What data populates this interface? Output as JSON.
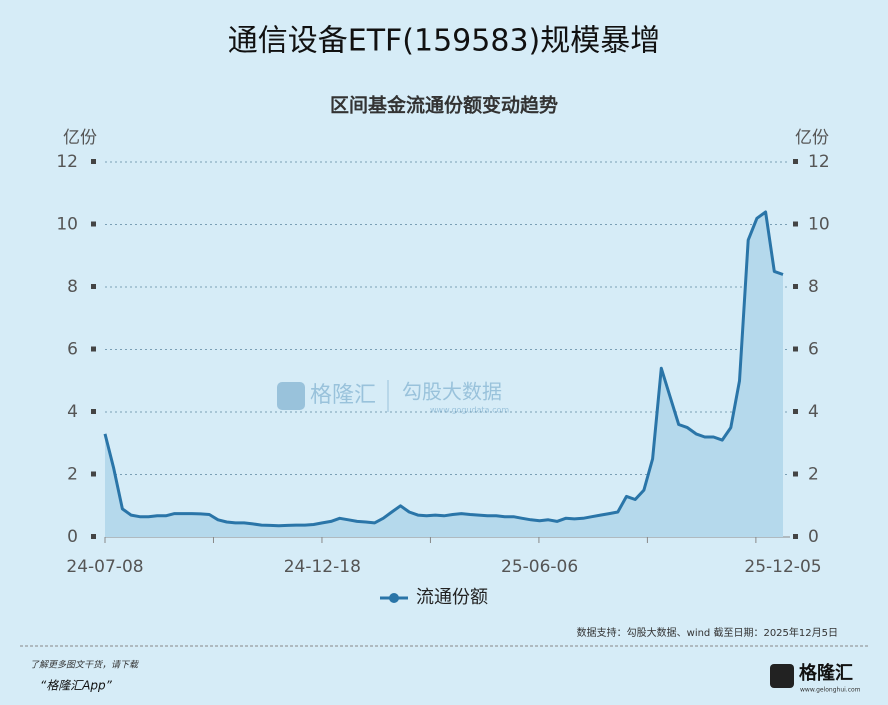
{
  "chart_data": {
    "type": "line",
    "title": "通信设备ETF(159583)规模暴增",
    "subtitle": "区间基金流通份额变动趋势",
    "y_unit": "亿份",
    "categories": [
      "24-07-08",
      null,
      null,
      null,
      null,
      null,
      null,
      null,
      null,
      null,
      null,
      null,
      null,
      null,
      null,
      null,
      null,
      null,
      null,
      null,
      null,
      null,
      null,
      null,
      null,
      "24-12-18",
      null,
      null,
      null,
      null,
      null,
      null,
      null,
      null,
      null,
      null,
      null,
      null,
      null,
      null,
      null,
      null,
      null,
      null,
      null,
      null,
      null,
      null,
      null,
      null,
      "25-06-06",
      null,
      null,
      null,
      null,
      null,
      null,
      null,
      null,
      null,
      null,
      null,
      null,
      null,
      null,
      null,
      null,
      null,
      null,
      null,
      null,
      null,
      null,
      null,
      null,
      null,
      null,
      null,
      "25-12-05"
    ],
    "series": [
      {
        "name": "流通份额",
        "color": "#2a75a8",
        "area_color": "#b5d9ec",
        "values": [
          3.3,
          2.2,
          0.9,
          0.7,
          0.65,
          0.65,
          0.68,
          0.68,
          0.75,
          0.75,
          0.75,
          0.74,
          0.72,
          0.55,
          0.48,
          0.45,
          0.45,
          0.42,
          0.38,
          0.37,
          0.36,
          0.37,
          0.38,
          0.38,
          0.4,
          0.45,
          0.5,
          0.6,
          0.55,
          0.5,
          0.48,
          0.45,
          0.6,
          0.8,
          1.0,
          0.8,
          0.7,
          0.68,
          0.7,
          0.68,
          0.72,
          0.75,
          0.72,
          0.7,
          0.68,
          0.68,
          0.65,
          0.65,
          0.6,
          0.55,
          0.52,
          0.55,
          0.5,
          0.6,
          0.58,
          0.6,
          0.65,
          0.7,
          0.75,
          0.8,
          1.3,
          1.2,
          1.5,
          2.5,
          5.4,
          4.5,
          3.6,
          3.5,
          3.3,
          3.2,
          3.2,
          3.1,
          3.5,
          5.0,
          9.5,
          10.2,
          10.4,
          8.5,
          8.4
        ]
      }
    ],
    "ylim": [
      0,
      12
    ],
    "yticks": [
      0,
      2,
      4,
      6,
      8,
      10,
      12
    ],
    "grid": true,
    "source": "数据支持：勾股大数据、wind 截至日期：2025年12月5日"
  },
  "watermark": {
    "brand": "格隆汇",
    "partner": "勾股大数据",
    "url": "www.gogudata.com"
  },
  "footer": {
    "line1": "了解更多图文干货，请下载",
    "line2": "“格隆汇App”",
    "logo": "格隆汇",
    "logo_url": "www.gelonghui.com"
  }
}
